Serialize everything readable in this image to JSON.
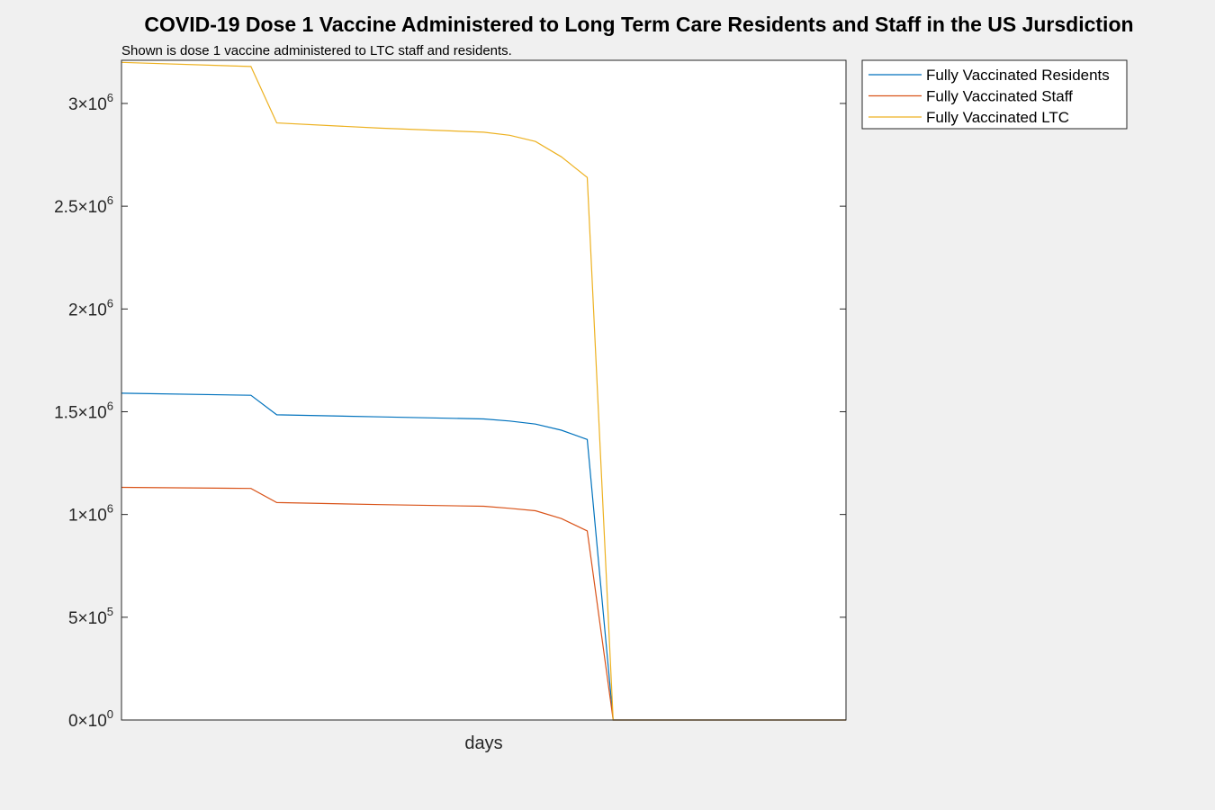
{
  "chart_data": {
    "type": "line",
    "title": "COVID-19 Dose 1 Vaccine Administered to Long Term Care Residents and Staff in the US Jursdiction",
    "subtitle": "Shown is dose 1 vaccine administered to LTC staff and residents.",
    "xlabel": "days",
    "ylabel": "",
    "x": [
      0,
      5,
      6,
      10,
      14,
      15,
      16,
      17,
      18,
      19,
      28
    ],
    "xlim": [
      0,
      28
    ],
    "ylim": [
      0,
      3210000
    ],
    "yticks": [
      {
        "mantissa": "0",
        "exp": "0",
        "value": 0
      },
      {
        "mantissa": "5",
        "exp": "5",
        "value": 500000
      },
      {
        "mantissa": "1",
        "exp": "6",
        "value": 1000000
      },
      {
        "mantissa": "1.5",
        "exp": "6",
        "value": 1500000
      },
      {
        "mantissa": "2",
        "exp": "6",
        "value": 2000000
      },
      {
        "mantissa": "2.5",
        "exp": "6",
        "value": 2500000
      },
      {
        "mantissa": "3",
        "exp": "6",
        "value": 3000000
      }
    ],
    "grid": false,
    "legend_position": "outside-top-right",
    "series": [
      {
        "name": "Fully Vaccinated Residents",
        "color": "#0072bd",
        "values": [
          1590000,
          1580000,
          1485000,
          1475000,
          1465000,
          1455000,
          1440000,
          1410000,
          1365000,
          0,
          0
        ]
      },
      {
        "name": "Fully Vaccinated Staff",
        "color": "#d95319",
        "values": [
          1132000,
          1127000,
          1058000,
          1048000,
          1040000,
          1030000,
          1018000,
          980000,
          920000,
          0,
          0
        ]
      },
      {
        "name": "Fully Vaccinated LTC",
        "color": "#edb120",
        "values": [
          3200000,
          3180000,
          2905000,
          2880000,
          2860000,
          2845000,
          2815000,
          2740000,
          2640000,
          0,
          0
        ]
      }
    ]
  }
}
